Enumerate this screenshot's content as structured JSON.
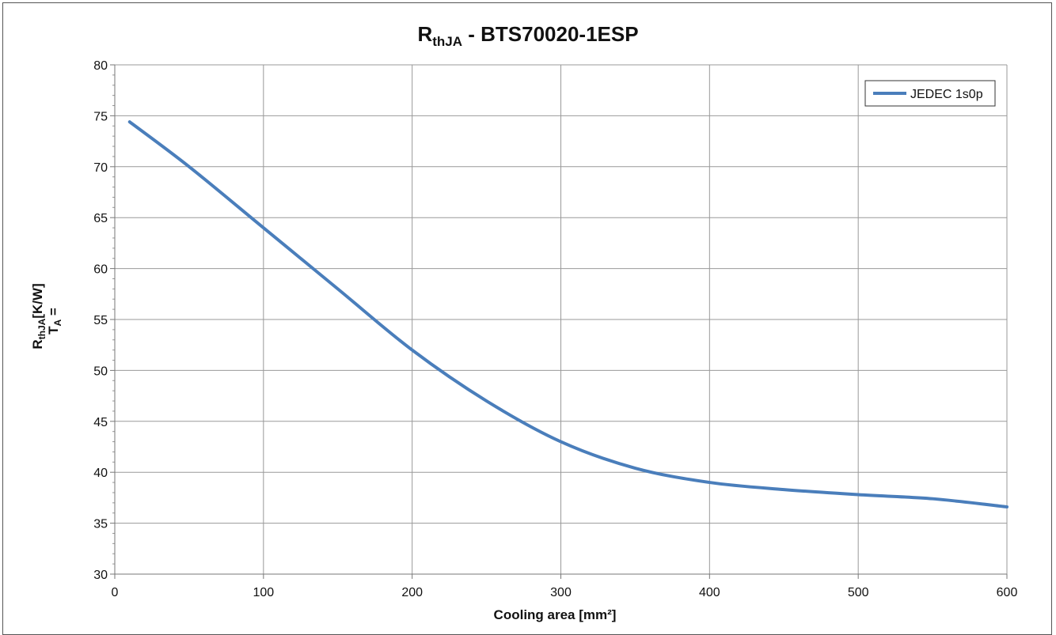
{
  "chart_data": {
    "type": "line",
    "title_main": "R",
    "title_sub": "thJA",
    "title_rest": " - BTS70020-1ESP",
    "xlabel": "Cooling area [mm²]",
    "ylabel_line1_main": "R",
    "ylabel_line1_sub": "thJA",
    "ylabel_line1_rest": "[K/W]",
    "ylabel_line2_main": "T",
    "ylabel_line2_sub": "A",
    "ylabel_line2_rest": " =",
    "xlim": [
      0,
      600
    ],
    "ylim": [
      30,
      80
    ],
    "xticks": [
      0,
      100,
      200,
      300,
      400,
      500,
      600
    ],
    "yticks": [
      30,
      35,
      40,
      45,
      50,
      55,
      60,
      65,
      70,
      75,
      80
    ],
    "grid": true,
    "legend_position": "top-right",
    "series": [
      {
        "name": "JEDEC 1s0p",
        "color": "#4a7ebb",
        "x": [
          10,
          50,
          100,
          150,
          200,
          250,
          300,
          350,
          400,
          450,
          500,
          550,
          600
        ],
        "y": [
          74.4,
          70,
          64,
          58,
          52,
          47,
          43,
          40.4,
          39,
          38.3,
          37.8,
          37.4,
          36.6
        ]
      }
    ]
  }
}
